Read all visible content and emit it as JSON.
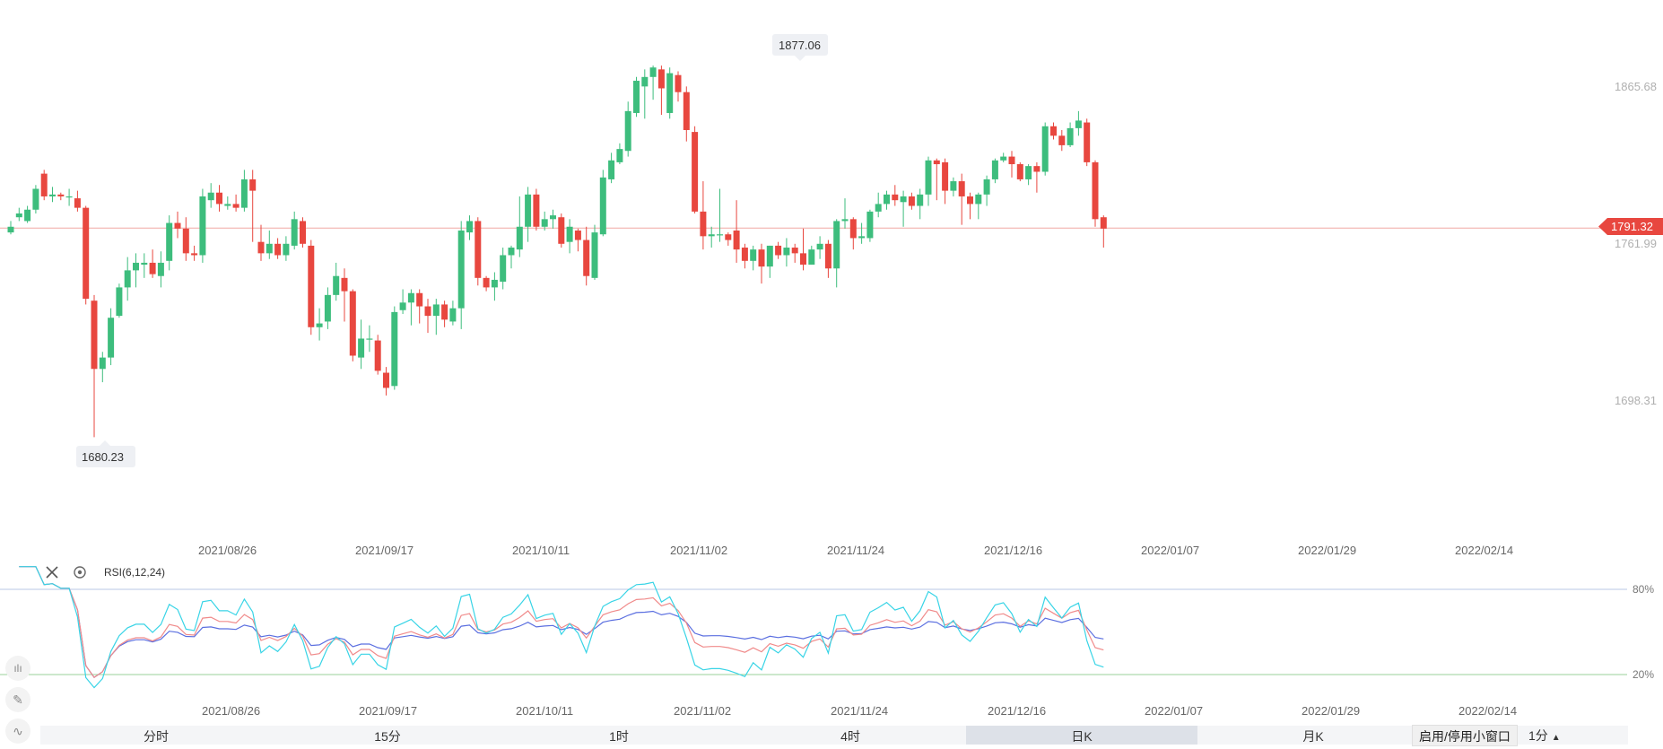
{
  "price_axis": {
    "labels": [
      "1865.68",
      "1761.99",
      "1698.31"
    ]
  },
  "current_price": {
    "label": "1791.32",
    "color": "#e8473f"
  },
  "high_marker": {
    "label": "1877.06"
  },
  "low_marker": {
    "label": "1680.23"
  },
  "dates": [
    "2021/08/26",
    "2021/09/17",
    "2021/10/11",
    "2021/11/02",
    "2021/11/24",
    "2021/12/16",
    "2022/01/07",
    "2022/01/29",
    "2022/02/14"
  ],
  "indicator": {
    "title": "RSI(6,12,24)",
    "levels": [
      "80%",
      "20%"
    ]
  },
  "timeframes": [
    {
      "label": "分时",
      "active": false
    },
    {
      "label": "15分",
      "active": false
    },
    {
      "label": "1时",
      "active": false
    },
    {
      "label": "4时",
      "active": false
    },
    {
      "label": "日K",
      "active": true
    },
    {
      "label": "月K",
      "active": false
    }
  ],
  "popup_button": {
    "label": "启用/停用小窗口"
  },
  "interval_select": {
    "label": "1分"
  },
  "colors": {
    "up": "#3dbd7d",
    "down": "#e8473f",
    "rsi6": "#38d4e6",
    "rsi12": "#f08a8a",
    "rsi24": "#5b6fe0"
  },
  "chart_data": {
    "type": "candlestick",
    "y_axis_ticks": [
      1865.68,
      1761.99,
      1698.31
    ],
    "x_axis_ticks": [
      "2021/08/26",
      "2021/09/17",
      "2021/10/11",
      "2021/11/02",
      "2021/11/24",
      "2021/12/16",
      "2022/01/07",
      "2022/01/29",
      "2022/02/14"
    ],
    "high": 1877.06,
    "low": 1680.23,
    "last": 1791.32,
    "candles": [
      [
        1789,
        1792,
        1788,
        1795
      ],
      [
        1797,
        1799,
        1795,
        1802
      ],
      [
        1795,
        1801,
        1794,
        1803
      ],
      [
        1801,
        1812,
        1799,
        1814
      ],
      [
        1820,
        1808,
        1806,
        1822
      ],
      [
        1808,
        1809,
        1805,
        1813
      ],
      [
        1809,
        1808,
        1806,
        1810
      ],
      [
        1808,
        1808,
        1803,
        1812
      ],
      [
        1807,
        1802,
        1800,
        1811
      ],
      [
        1802,
        1754,
        1751,
        1803
      ],
      [
        1753,
        1717,
        1681,
        1756
      ],
      [
        1717,
        1723,
        1710,
        1726
      ],
      [
        1723,
        1744,
        1719,
        1749
      ],
      [
        1745,
        1760,
        1744,
        1762
      ],
      [
        1760,
        1769,
        1753,
        1776
      ],
      [
        1769,
        1773,
        1760,
        1778
      ],
      [
        1772,
        1773,
        1765,
        1778
      ],
      [
        1773,
        1767,
        1765,
        1780
      ],
      [
        1766,
        1773,
        1760,
        1779
      ],
      [
        1774,
        1794,
        1769,
        1798
      ],
      [
        1794,
        1791,
        1786,
        1800
      ],
      [
        1791,
        1778,
        1774,
        1797
      ],
      [
        1778,
        1777,
        1774,
        1782
      ],
      [
        1777,
        1808,
        1773,
        1812
      ],
      [
        1806,
        1810,
        1802,
        1815
      ],
      [
        1810,
        1804,
        1800,
        1814
      ],
      [
        1803,
        1804,
        1801,
        1808
      ],
      [
        1804,
        1802,
        1800,
        1809
      ],
      [
        1802,
        1817,
        1800,
        1822
      ],
      [
        1817,
        1811,
        1784,
        1822
      ],
      [
        1784,
        1778,
        1774,
        1793
      ],
      [
        1778,
        1783,
        1775,
        1790
      ],
      [
        1783,
        1777,
        1775,
        1786
      ],
      [
        1777,
        1783,
        1774,
        1787
      ],
      [
        1782,
        1796,
        1780,
        1800
      ],
      [
        1795,
        1783,
        1781,
        1797
      ],
      [
        1782,
        1739,
        1735,
        1785
      ],
      [
        1739,
        1741,
        1732,
        1749
      ],
      [
        1742,
        1756,
        1738,
        1760
      ],
      [
        1756,
        1766,
        1753,
        1773
      ],
      [
        1765,
        1758,
        1742,
        1770
      ],
      [
        1758,
        1724,
        1721,
        1759
      ],
      [
        1723,
        1733,
        1717,
        1743
      ],
      [
        1733,
        1733,
        1726,
        1740
      ],
      [
        1732,
        1716,
        1714,
        1735
      ],
      [
        1715,
        1707,
        1703,
        1718
      ],
      [
        1708,
        1747,
        1706,
        1750
      ],
      [
        1748,
        1752,
        1746,
        1759
      ],
      [
        1752,
        1757,
        1740,
        1759
      ],
      [
        1757,
        1750,
        1741,
        1759
      ],
      [
        1750,
        1745,
        1736,
        1754
      ],
      [
        1745,
        1751,
        1735,
        1754
      ],
      [
        1751,
        1743,
        1739,
        1753
      ],
      [
        1742,
        1749,
        1740,
        1753
      ],
      [
        1749,
        1790,
        1738,
        1795
      ],
      [
        1789,
        1795,
        1785,
        1798
      ],
      [
        1795,
        1765,
        1761,
        1797
      ],
      [
        1765,
        1760,
        1758,
        1766
      ],
      [
        1760,
        1764,
        1753,
        1768
      ],
      [
        1763,
        1777,
        1759,
        1781
      ],
      [
        1777,
        1781,
        1770,
        1782
      ],
      [
        1780,
        1792,
        1776,
        1808
      ],
      [
        1792,
        1809,
        1784,
        1813
      ],
      [
        1809,
        1792,
        1790,
        1812
      ],
      [
        1792,
        1796,
        1790,
        1800
      ],
      [
        1796,
        1798,
        1791,
        1801
      ],
      [
        1797,
        1783,
        1781,
        1799
      ],
      [
        1784,
        1792,
        1778,
        1796
      ],
      [
        1790,
        1785,
        1779,
        1791
      ],
      [
        1785,
        1766,
        1761,
        1792
      ],
      [
        1765,
        1789,
        1764,
        1793
      ],
      [
        1788,
        1818,
        1787,
        1822
      ],
      [
        1817,
        1827,
        1815,
        1831
      ],
      [
        1826,
        1833,
        1825,
        1836
      ],
      [
        1832,
        1853,
        1829,
        1858
      ],
      [
        1852,
        1869,
        1850,
        1871
      ],
      [
        1866,
        1871,
        1849,
        1875
      ],
      [
        1871,
        1876,
        1859,
        1877
      ],
      [
        1875,
        1865,
        1851,
        1877
      ],
      [
        1852,
        1873,
        1849,
        1876
      ],
      [
        1872,
        1863,
        1858,
        1874
      ],
      [
        1863,
        1843,
        1837,
        1866
      ],
      [
        1842,
        1800,
        1799,
        1845
      ],
      [
        1800,
        1787,
        1780,
        1816
      ],
      [
        1787,
        1788,
        1781,
        1792
      ],
      [
        1788,
        1788,
        1784,
        1812
      ],
      [
        1788,
        1785,
        1782,
        1789
      ],
      [
        1790,
        1780,
        1773,
        1806
      ],
      [
        1781,
        1774,
        1770,
        1783
      ],
      [
        1774,
        1780,
        1769,
        1782
      ],
      [
        1780,
        1771,
        1762,
        1783
      ],
      [
        1771,
        1782,
        1765,
        1782
      ],
      [
        1782,
        1777,
        1775,
        1784
      ],
      [
        1777,
        1781,
        1771,
        1786
      ],
      [
        1781,
        1778,
        1773,
        1783
      ],
      [
        1778,
        1772,
        1769,
        1791
      ],
      [
        1772,
        1780,
        1772,
        1782
      ],
      [
        1780,
        1783,
        1775,
        1787
      ],
      [
        1783,
        1770,
        1765,
        1785
      ],
      [
        1770,
        1795,
        1760,
        1796
      ],
      [
        1795,
        1796,
        1791,
        1807
      ],
      [
        1796,
        1786,
        1780,
        1797
      ],
      [
        1786,
        1787,
        1783,
        1794
      ],
      [
        1786,
        1800,
        1784,
        1801
      ],
      [
        1800,
        1804,
        1797,
        1810
      ],
      [
        1804,
        1809,
        1801,
        1811
      ],
      [
        1809,
        1806,
        1803,
        1814
      ],
      [
        1805,
        1808,
        1792,
        1811
      ],
      [
        1808,
        1803,
        1801,
        1810
      ],
      [
        1803,
        1809,
        1796,
        1812
      ],
      [
        1809,
        1827,
        1803,
        1829
      ],
      [
        1827,
        1825,
        1806,
        1828
      ],
      [
        1826,
        1811,
        1804,
        1828
      ],
      [
        1811,
        1816,
        1808,
        1818
      ],
      [
        1816,
        1808,
        1793,
        1820
      ],
      [
        1808,
        1804,
        1796,
        1810
      ],
      [
        1804,
        1809,
        1796,
        1810
      ],
      [
        1809,
        1817,
        1803,
        1819
      ],
      [
        1817,
        1827,
        1815,
        1828
      ],
      [
        1827,
        1829,
        1826,
        1831
      ],
      [
        1829,
        1825,
        1818,
        1832
      ],
      [
        1825,
        1817,
        1816,
        1826
      ],
      [
        1817,
        1824,
        1814,
        1825
      ],
      [
        1824,
        1821,
        1810,
        1826
      ],
      [
        1821,
        1845,
        1819,
        1847
      ],
      [
        1845,
        1840,
        1838,
        1847
      ],
      [
        1840,
        1835,
        1832,
        1843
      ],
      [
        1835,
        1844,
        1834,
        1847
      ],
      [
        1844,
        1848,
        1840,
        1853
      ],
      [
        1847,
        1826,
        1824,
        1849
      ],
      [
        1826,
        1796,
        1792,
        1827
      ],
      [
        1797,
        1791,
        1781,
        1798
      ]
    ],
    "rsi": {
      "labels": [
        "RSI6",
        "RSI12",
        "RSI24"
      ],
      "levels": [
        80,
        20
      ]
    }
  }
}
